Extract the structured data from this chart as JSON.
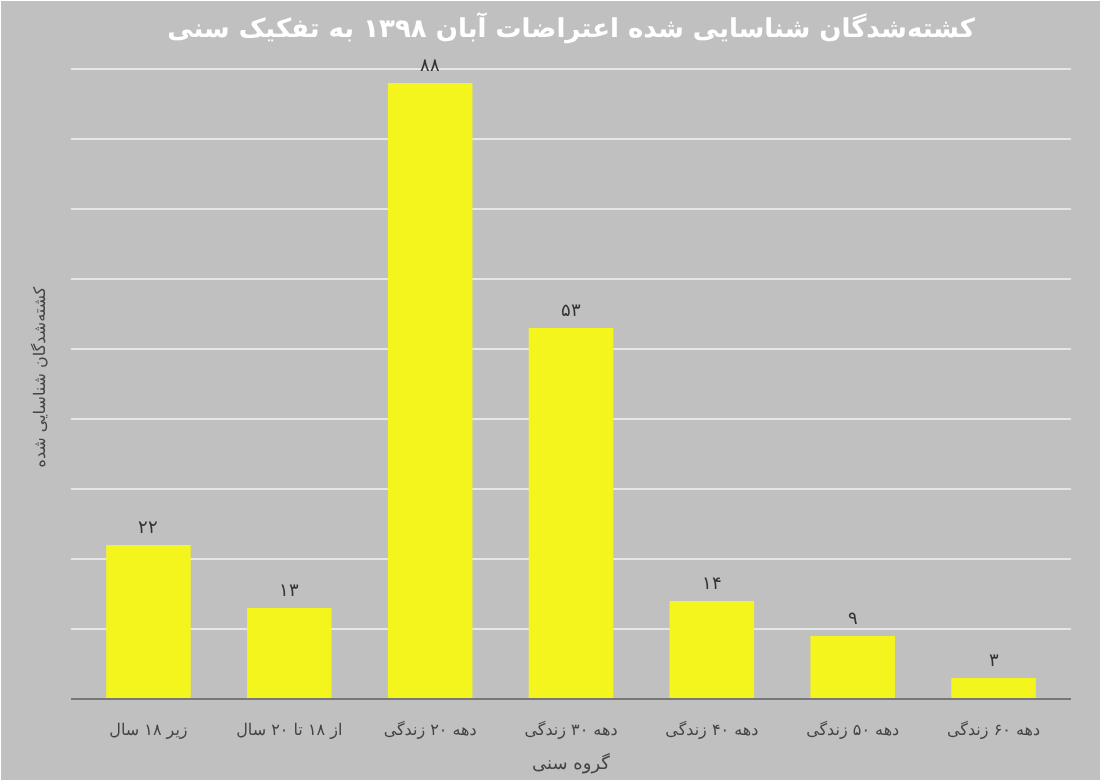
{
  "chart_data": {
    "type": "bar",
    "title": "کشته‌شدگان شناسایی شده اعتراضات آبان ۱۳۹۸ به تفکیک سنی",
    "xlabel": "گروه سنی",
    "ylabel": "کشته‌شدگان شناسایی شده",
    "categories": [
      "زیر ۱۸ سال",
      "از ۱۸ تا ۲۰ سال",
      "دهه ۲۰ زندگی",
      "دهه ۳۰ زندگی",
      "دهه ۴۰ زندگی",
      "دهه ۵۰ زندگی",
      "دهه ۶۰ زندگی"
    ],
    "values": [
      22,
      13,
      88,
      53,
      14,
      9,
      3
    ],
    "value_labels": [
      "۲۲",
      "۱۳",
      "۸۸",
      "۵۳",
      "۱۴",
      "۹",
      "۳"
    ],
    "color": "#f5f51e",
    "ylim": [
      0,
      92
    ],
    "yticks": [
      {
        "value": 0,
        "label": null
      },
      {
        "value": 10,
        "label": null
      },
      {
        "value": 20,
        "label": null
      },
      {
        "value": 30,
        "label": null
      },
      {
        "value": 40,
        "label": null
      },
      {
        "value": 50,
        "label": null
      },
      {
        "value": 60,
        "label": null
      },
      {
        "value": 70,
        "label": null
      },
      {
        "value": 80,
        "label": null
      },
      {
        "value": 90,
        "label": null
      }
    ],
    "grid": "y",
    "tick_labels": "x"
  }
}
